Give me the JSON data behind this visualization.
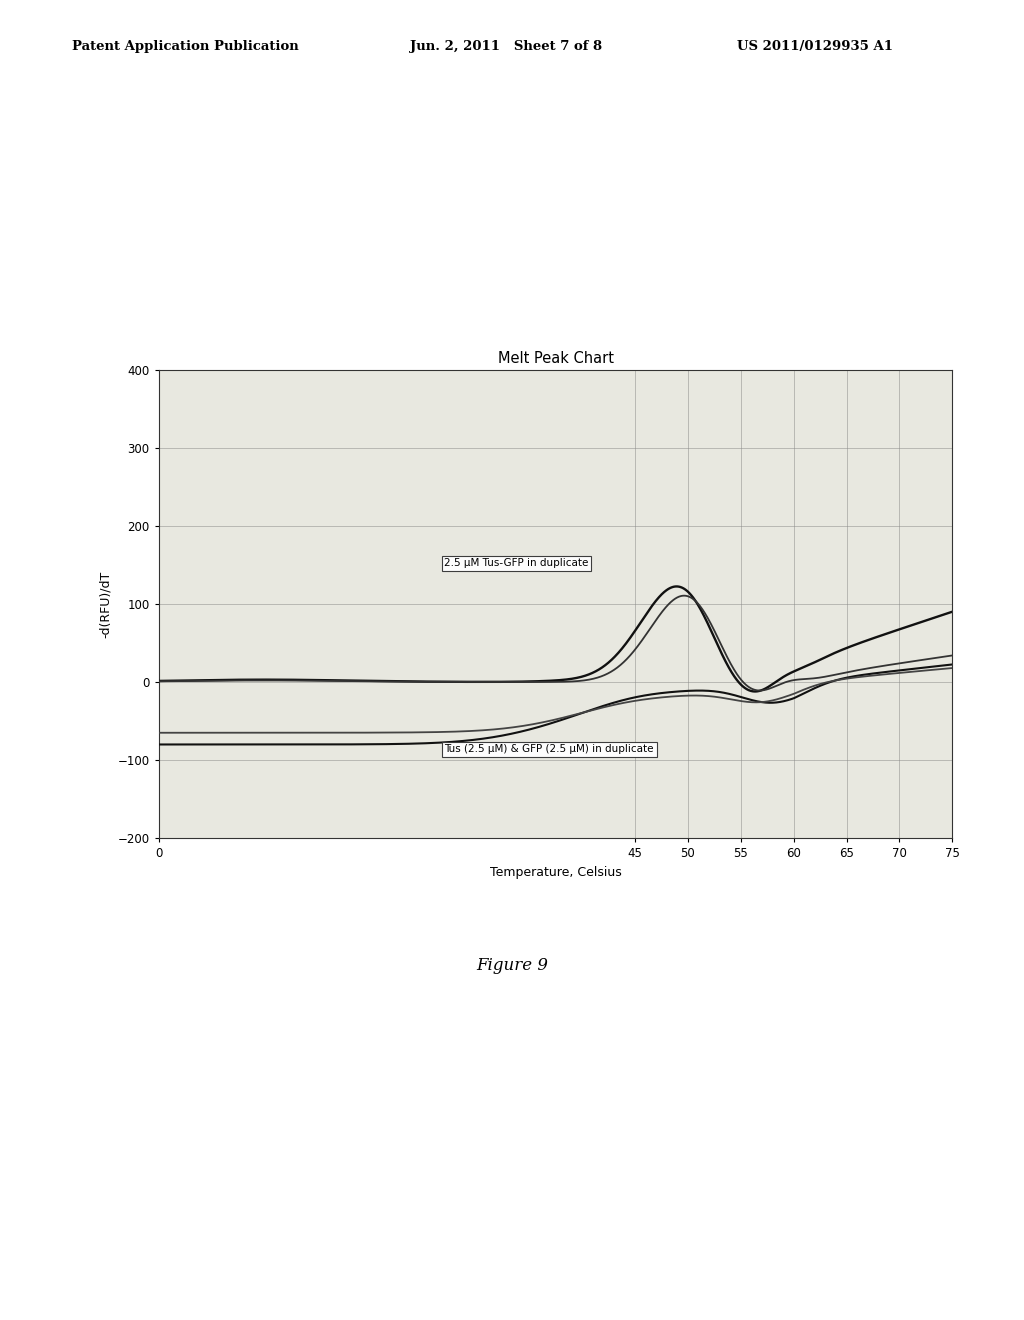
{
  "title": "Melt Peak Chart",
  "xlabel": "Temperature, Celsius",
  "ylabel": "-d(RFU)/dT",
  "xlim": [
    0,
    75
  ],
  "ylim": [
    -200,
    400
  ],
  "xticks": [
    0,
    45,
    50,
    55,
    60,
    65,
    70,
    75
  ],
  "yticks": [
    -200,
    -100,
    0,
    100,
    200,
    300,
    400
  ],
  "header_left": "Patent Application Publication",
  "header_mid": "Jun. 2, 2011   Sheet 7 of 8",
  "header_right": "US 2011/0129935 A1",
  "figure_caption": "Figure 9",
  "annotation1": "2.5 μM Tus-GFP in duplicate",
  "annotation2": "Tus (2.5 μM) & GFP (2.5 μM) in duplicate",
  "background_color": "#ffffff",
  "page_color": "#ffffff",
  "plot_bg": "#e8e8e0"
}
